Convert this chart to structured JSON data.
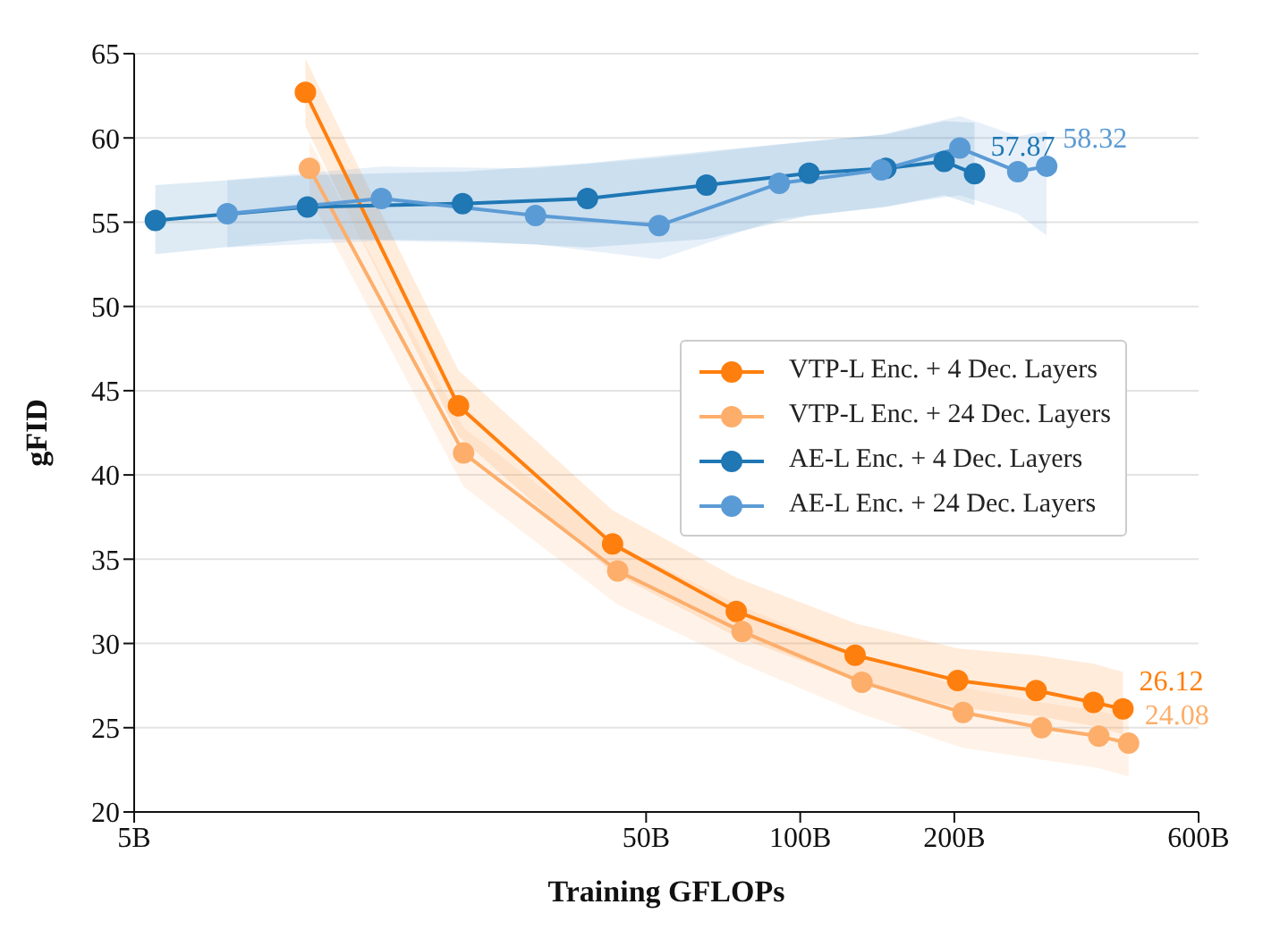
{
  "chart_data": {
    "type": "line",
    "xlabel": "Training GFLOPs",
    "ylabel": "gFID",
    "log": "x",
    "xlim": [
      5,
      600
    ],
    "xticks": [
      {
        "value": 5,
        "label": "5B"
      },
      {
        "value": 50,
        "label": "50B"
      },
      {
        "value": 100,
        "label": "100B"
      },
      {
        "value": 200,
        "label": "200B"
      },
      {
        "value": 600,
        "label": "600B"
      }
    ],
    "ylim": [
      20,
      65
    ],
    "yticks": [
      20,
      25,
      30,
      35,
      40,
      45,
      50,
      55,
      60,
      65
    ],
    "grid": "y",
    "legend": "right",
    "marker": "circle",
    "line_style": "solid",
    "series": [
      {
        "name": "VTP-L Enc. + 4 Dec. Layers",
        "color": "#ff7f0e",
        "x": [
          10.8,
          21.5,
          43,
          75,
          128,
          203,
          289,
          374,
          427
        ],
        "values": [
          62.7,
          44.1,
          35.9,
          31.9,
          29.3,
          27.8,
          27.2,
          26.5,
          26.12
        ],
        "upper": [
          64.7,
          46.2,
          37.9,
          33.9,
          31.2,
          29.7,
          29.3,
          28.8,
          28.3
        ],
        "lower": [
          60.7,
          42.3,
          34.2,
          30.4,
          27.8,
          26.2,
          25.7,
          25.1,
          24.6
        ]
      },
      {
        "name": "VTP-L Enc. + 24 Dec. Layers",
        "color": "#fdae6b",
        "x": [
          11,
          22,
          44,
          77,
          132,
          208,
          296,
          383,
          438
        ],
        "values": [
          58.2,
          41.3,
          34.3,
          30.7,
          27.7,
          25.9,
          25,
          24.5,
          24.08
        ],
        "upper": [
          59.8,
          42.8,
          35.8,
          32.2,
          29.2,
          27.4,
          26.5,
          26,
          25.6
        ],
        "lower": [
          56.5,
          39.3,
          32.3,
          28.8,
          25.8,
          23.8,
          23.1,
          22.6,
          22.1
        ]
      },
      {
        "name": "AE-L Enc. + 4 Dec. Layers",
        "color": "#1f77b4",
        "x": [
          5.5,
          10.9,
          21.9,
          38.4,
          65.6,
          104,
          147,
          191,
          219
        ],
        "values": [
          55.1,
          55.9,
          56.1,
          56.4,
          57.2,
          57.9,
          58.2,
          58.6,
          57.87
        ],
        "upper": [
          57.2,
          57.8,
          58,
          58.5,
          59.2,
          59.8,
          60.2,
          61,
          60.9
        ],
        "lower": [
          53.1,
          54,
          53.9,
          53.5,
          54,
          55.4,
          55.9,
          56.6,
          56
        ]
      },
      {
        "name": "AE-L Enc. + 24 Dec. Layers",
        "color": "#5b9bd5",
        "x": [
          7.6,
          15.2,
          30.4,
          53,
          91,
          144,
          205,
          266,
          303
        ],
        "values": [
          55.5,
          56.4,
          55.4,
          54.8,
          57.3,
          58.1,
          59.4,
          58,
          58.32
        ],
        "upper": [
          57.5,
          58.3,
          58.2,
          58.8,
          59.6,
          60.2,
          61.3,
          60.1,
          60.4
        ],
        "lower": [
          53.5,
          53.9,
          53.7,
          52.8,
          55.2,
          55.9,
          56.6,
          55.5,
          54.2
        ]
      }
    ],
    "annotations": [
      {
        "text": "57.87",
        "x": 219,
        "y": 57.87
      },
      {
        "text": "58.32",
        "x": 303,
        "y": 58.32
      },
      {
        "text": "26.12",
        "x": 427,
        "y": 26.12
      },
      {
        "text": "24.08",
        "x": 438,
        "y": 24.08
      }
    ]
  }
}
